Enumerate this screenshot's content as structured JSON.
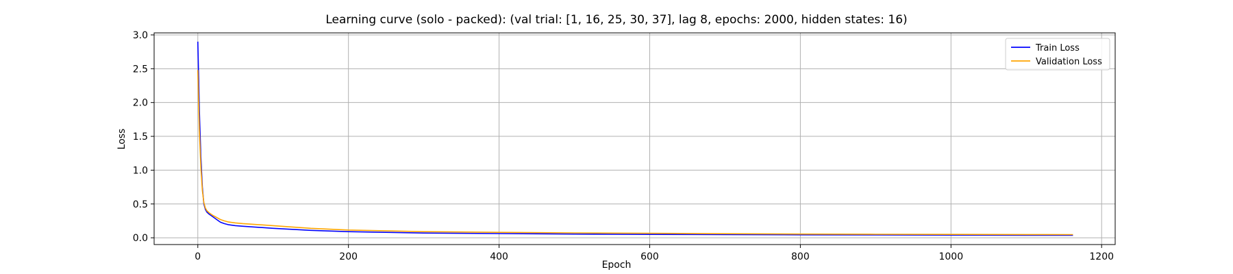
{
  "chart_data": {
    "type": "line",
    "title": "Learning curve (solo - packed): (val trial: [1, 16, 25, 30, 37], lag 8, epochs: 2000, hidden states: 16)",
    "xlabel": "Epoch",
    "ylabel": "Loss",
    "xlim": [
      -58,
      1218
    ],
    "ylim": [
      -0.1,
      3.03
    ],
    "xticks": [
      0,
      200,
      400,
      600,
      800,
      1000,
      1200
    ],
    "yticks": [
      0.0,
      0.5,
      1.0,
      1.5,
      2.0,
      2.5,
      3.0
    ],
    "xtick_labels": [
      "0",
      "200",
      "400",
      "600",
      "800",
      "1000",
      "1200"
    ],
    "ytick_labels": [
      "0.0",
      "0.5",
      "1.0",
      "1.5",
      "2.0",
      "2.5",
      "3.0"
    ],
    "grid": true,
    "legend_position": "top-right",
    "series": [
      {
        "name": "Train Loss",
        "color": "#0000ff",
        "x": [
          0,
          2,
          4,
          6,
          8,
          10,
          12,
          15,
          20,
          25,
          30,
          35,
          40,
          50,
          60,
          80,
          100,
          150,
          200,
          300,
          400,
          500,
          600,
          700,
          800,
          900,
          1000,
          1100,
          1162
        ],
        "y": [
          2.9,
          1.9,
          1.2,
          0.75,
          0.5,
          0.42,
          0.38,
          0.35,
          0.31,
          0.27,
          0.23,
          0.21,
          0.195,
          0.18,
          0.17,
          0.155,
          0.14,
          0.11,
          0.09,
          0.07,
          0.062,
          0.055,
          0.05,
          0.047,
          0.044,
          0.042,
          0.04,
          0.038,
          0.037
        ]
      },
      {
        "name": "Validation Loss",
        "color": "#ffa500",
        "x": [
          0,
          2,
          4,
          6,
          8,
          10,
          12,
          15,
          20,
          25,
          30,
          35,
          40,
          50,
          60,
          80,
          100,
          150,
          200,
          300,
          400,
          500,
          600,
          700,
          800,
          900,
          1000,
          1100,
          1162
        ],
        "y": [
          2.48,
          1.6,
          1.05,
          0.7,
          0.52,
          0.44,
          0.4,
          0.37,
          0.33,
          0.3,
          0.27,
          0.25,
          0.235,
          0.22,
          0.21,
          0.195,
          0.18,
          0.14,
          0.115,
          0.09,
          0.08,
          0.072,
          0.066,
          0.06,
          0.055,
          0.052,
          0.05,
          0.048,
          0.047
        ]
      }
    ]
  }
}
